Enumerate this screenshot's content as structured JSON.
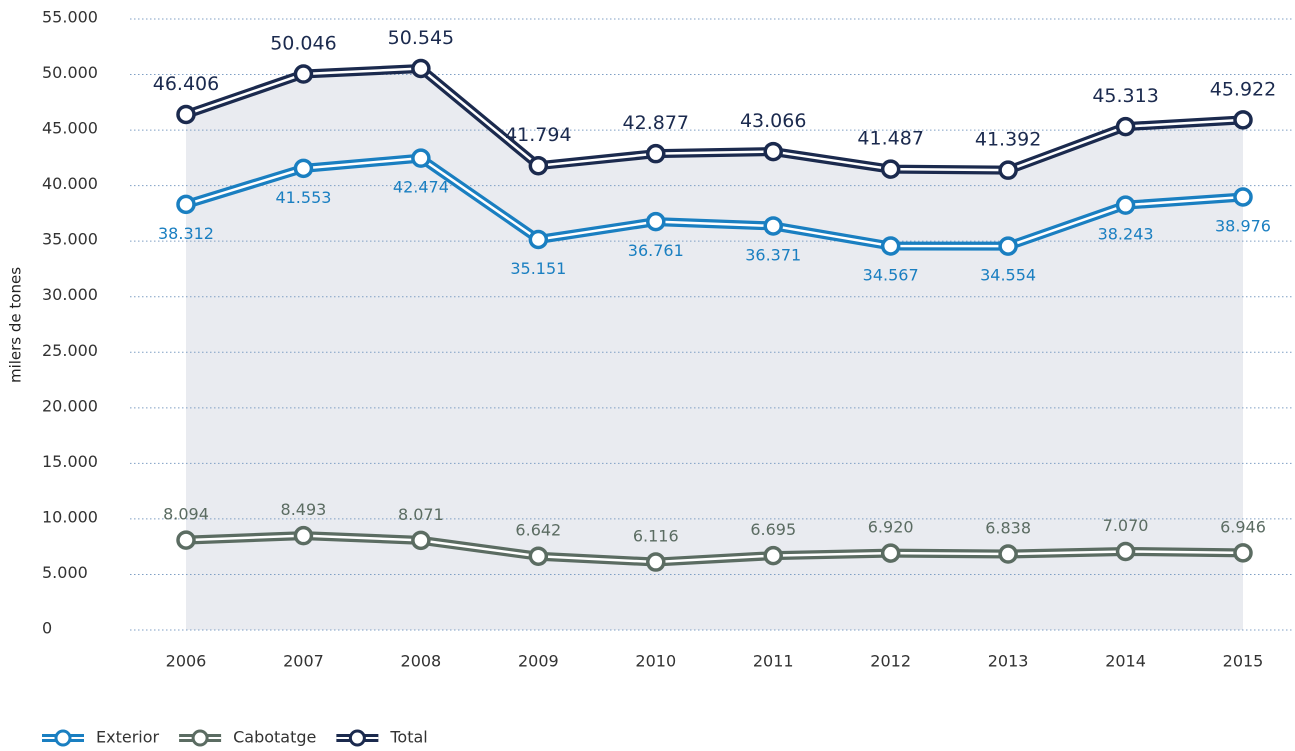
{
  "chart_data": {
    "type": "line",
    "y_label": "milers de tones",
    "categories": [
      "2006",
      "2007",
      "2008",
      "2009",
      "2010",
      "2011",
      "2012",
      "2013",
      "2014",
      "2015"
    ],
    "series": [
      {
        "name": "Exterior",
        "color": "#1a7fc1",
        "values": [
          38312,
          41553,
          42474,
          35151,
          36761,
          36371,
          34567,
          34554,
          38243,
          38976
        ],
        "value_labels": [
          "38.312",
          "41.553",
          "42.474",
          "35.151",
          "36.761",
          "36.371",
          "34.567",
          "34.554",
          "38.243",
          "38.976"
        ]
      },
      {
        "name": "Cabotatge",
        "color": "#5b6c62",
        "values": [
          8094,
          8493,
          8071,
          6642,
          6116,
          6695,
          6920,
          6838,
          7070,
          6946
        ],
        "value_labels": [
          "8.094",
          "8.493",
          "8.071",
          "6.642",
          "6.116",
          "6.695",
          "6.920",
          "6.838",
          "7.070",
          "6.946"
        ]
      },
      {
        "name": "Total",
        "color": "#1b2a4e",
        "values": [
          46406,
          50046,
          50545,
          41794,
          42877,
          43066,
          41487,
          41392,
          45313,
          45922
        ],
        "value_labels": [
          "46.406",
          "50.046",
          "50.545",
          "41.794",
          "42.877",
          "43.066",
          "41.487",
          "41.392",
          "45.313",
          "45.922"
        ]
      }
    ],
    "ylim": [
      0,
      55000
    ],
    "yticks": [
      0,
      {
        "value": 5000,
        "label": "5.000"
      },
      {
        "value": 10000,
        "label": "10.000"
      },
      {
        "value": 15000,
        "label": "15.000"
      },
      {
        "value": 20000,
        "label": "20.000"
      },
      {
        "value": 25000,
        "label": "25.000"
      },
      {
        "value": 30000,
        "label": "30.000"
      },
      {
        "value": 35000,
        "label": "35.000"
      },
      {
        "value": 40000,
        "label": "40.000"
      },
      {
        "value": 45000,
        "label": "45.000"
      },
      {
        "value": 50000,
        "label": "50.000"
      },
      {
        "value": 55000,
        "label": "55.000"
      }
    ],
    "grid": true,
    "legend": "bottom-left"
  }
}
